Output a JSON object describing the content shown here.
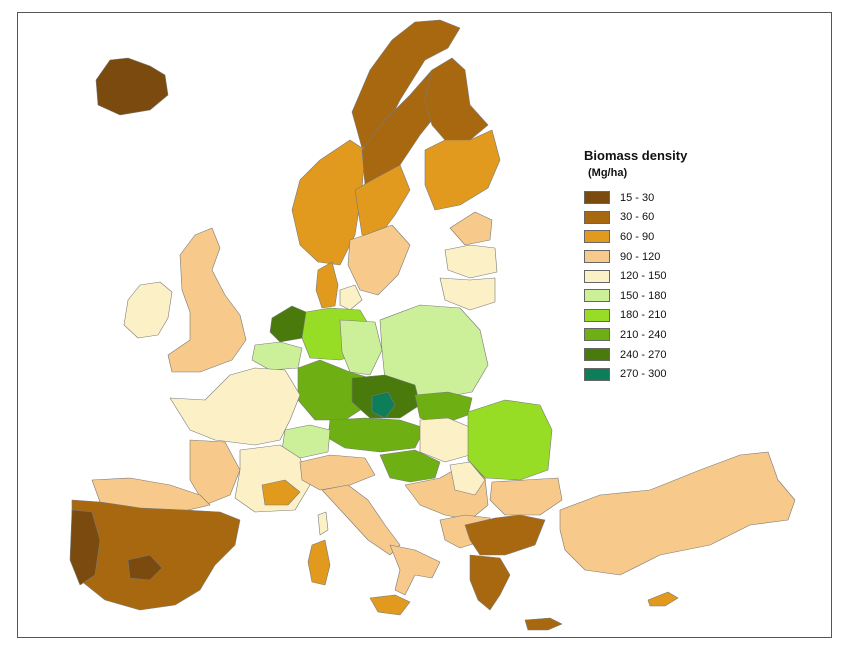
{
  "legend": {
    "title": "Biomass density",
    "units": "(Mg/ha)",
    "classes": [
      {
        "label": "15 - 30",
        "color": "#7b4a0e"
      },
      {
        "label": "30 - 60",
        "color": "#a8680f"
      },
      {
        "label": "60 - 90",
        "color": "#e19a1e"
      },
      {
        "label": "90 - 120",
        "color": "#f7c98a"
      },
      {
        "label": "120 - 150",
        "color": "#fcf0c6"
      },
      {
        "label": "150 - 180",
        "color": "#ccf09a"
      },
      {
        "label": "180 - 210",
        "color": "#97dd25"
      },
      {
        "label": "210 - 240",
        "color": "#6eaf13"
      },
      {
        "label": "240 - 270",
        "color": "#497a0b"
      },
      {
        "label": "270 - 300",
        "color": "#0d7d5a"
      }
    ]
  },
  "colors": {
    "sea": "#ffffff",
    "region_border": "#7a7a7a",
    "frame": "#555555"
  }
}
